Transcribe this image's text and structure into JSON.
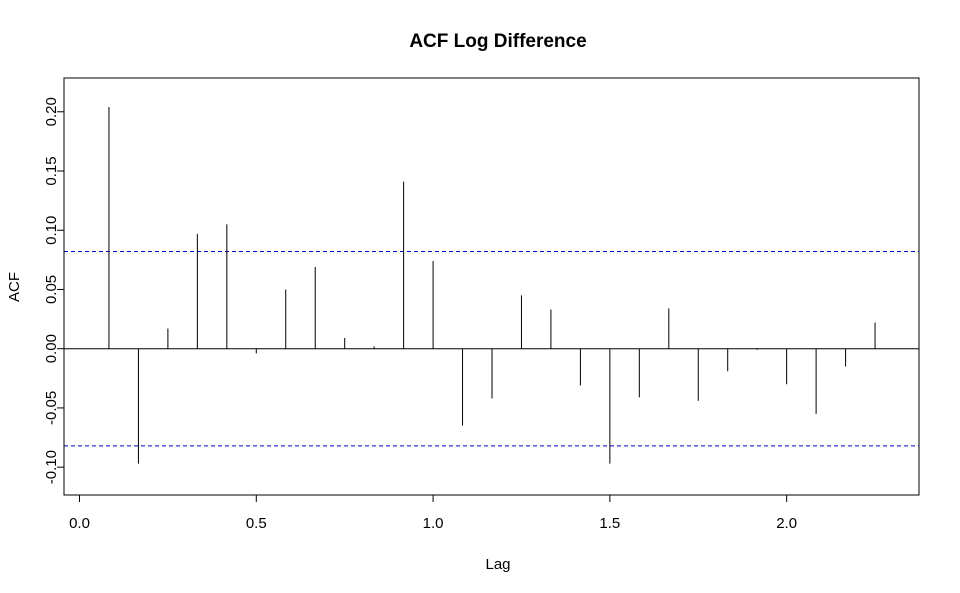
{
  "chart_data": {
    "type": "bar",
    "title": "ACF Log Difference",
    "xlabel": "Lag",
    "ylabel": "ACF",
    "xlim": [
      0.0,
      2.3333
    ],
    "ylim": [
      -0.11,
      0.215
    ],
    "x_ticks": [
      0.0,
      0.5,
      1.0,
      1.5,
      2.0
    ],
    "x_tick_labels": [
      "0.0",
      "0.5",
      "1.0",
      "1.5",
      "2.0"
    ],
    "y_ticks": [
      -0.1,
      -0.05,
      0.0,
      0.05,
      0.1,
      0.15,
      0.2
    ],
    "y_tick_labels": [
      "-0.10",
      "-0.05",
      "0.00",
      "0.05",
      "0.10",
      "0.15",
      "0.20"
    ],
    "confidence_band": [
      -0.082,
      0.082
    ],
    "confidence_color": "#0000CD",
    "grid": false,
    "series": [
      {
        "x": [
          0.0833,
          0.1667,
          0.25,
          0.3333,
          0.4167,
          0.5,
          0.5833,
          0.6667,
          0.75,
          0.8333,
          0.9167,
          1.0,
          1.0833,
          1.1667,
          1.25,
          1.3333,
          1.4167,
          1.5,
          1.5833,
          1.6667,
          1.75,
          1.8333,
          1.9167,
          2.0,
          2.0833,
          2.1667,
          2.25
        ],
        "values": [
          0.204,
          -0.097,
          0.017,
          0.097,
          0.105,
          -0.004,
          0.05,
          0.069,
          0.009,
          0.002,
          0.141,
          0.074,
          -0.065,
          -0.042,
          0.045,
          0.033,
          -0.031,
          -0.097,
          -0.041,
          0.034,
          -0.044,
          -0.019,
          -0.001,
          -0.03,
          -0.055,
          -0.015,
          0.022
        ]
      }
    ]
  }
}
